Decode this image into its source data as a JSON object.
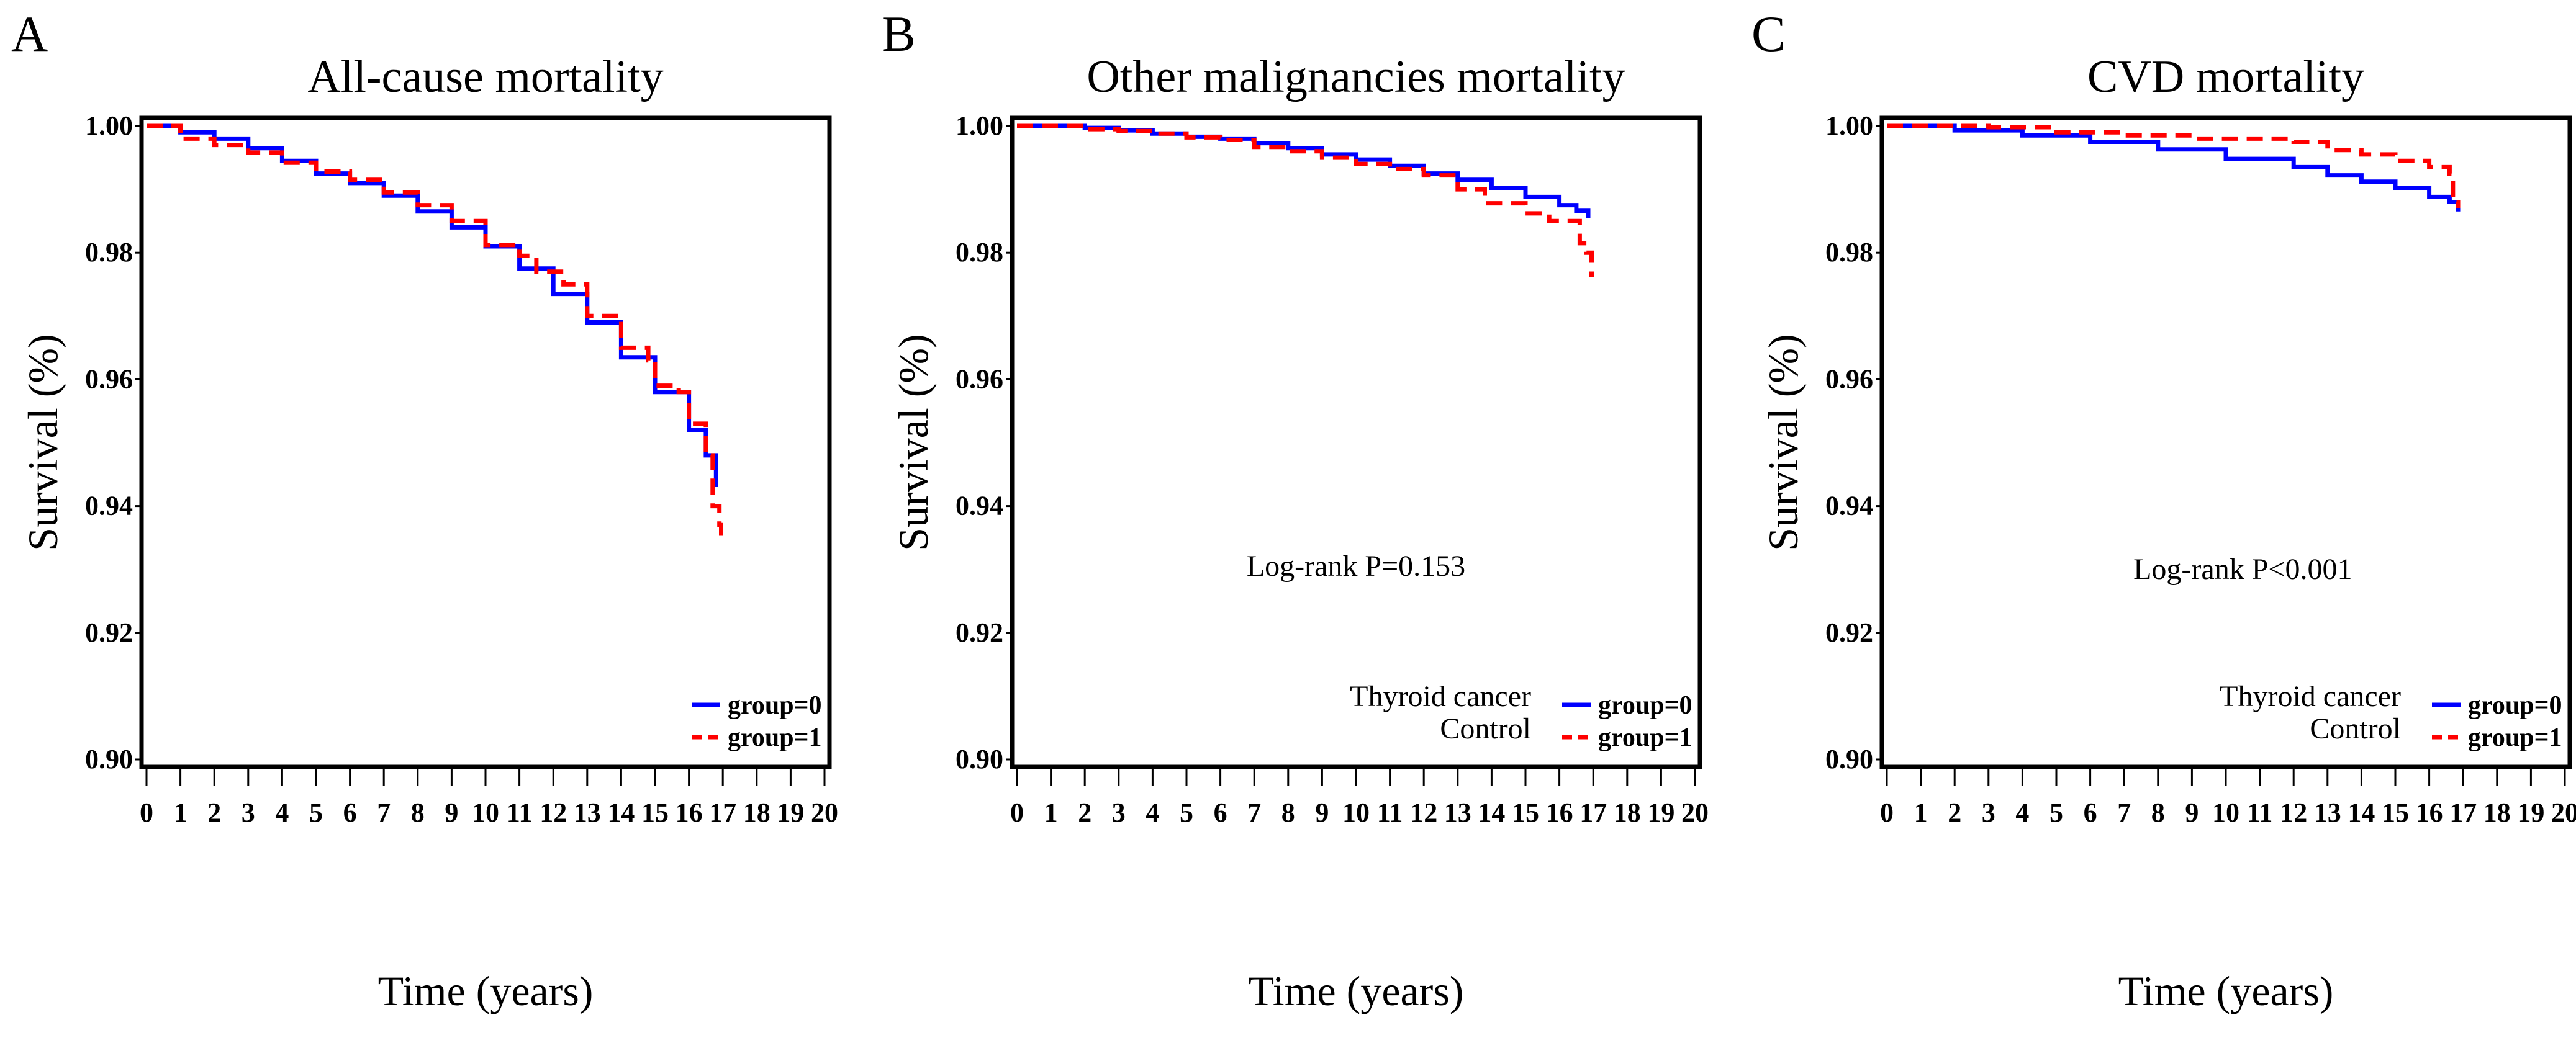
{
  "colors": {
    "group0": "#0000ff",
    "group1": "#ff0000",
    "axis": "#000000"
  },
  "chart_data": [
    {
      "type": "line",
      "panel_label": "A",
      "title": "All-cause mortality",
      "xlabel": "Time (years)",
      "ylabel": "Survival (%)",
      "xlim": [
        0,
        20
      ],
      "ylim": [
        0.9,
        1.0
      ],
      "xticks": [
        "0",
        "1",
        "2",
        "3",
        "4",
        "5",
        "6",
        "7",
        "8",
        "9",
        "10",
        "11",
        "12",
        "13",
        "14",
        "15",
        "16",
        "17",
        "18",
        "19",
        "20"
      ],
      "yticks": [
        "0.90",
        "0.92",
        "0.94",
        "0.96",
        "0.98",
        "1.00"
      ],
      "grid": false,
      "legend_position": "bottom-right",
      "legend_names": [],
      "annotation": null,
      "series": [
        {
          "name": "group=0",
          "style": "solid",
          "x": [
            0,
            1,
            2,
            3,
            4,
            5,
            6,
            7,
            8,
            9,
            10,
            11,
            12,
            13,
            14,
            15,
            16,
            16.5,
            16.8
          ],
          "y": [
            1.0,
            0.999,
            0.998,
            0.9965,
            0.9945,
            0.9925,
            0.991,
            0.989,
            0.9865,
            0.984,
            0.981,
            0.9775,
            0.9735,
            0.969,
            0.9635,
            0.958,
            0.952,
            0.948,
            0.943
          ]
        },
        {
          "name": "group=1",
          "style": "dashed",
          "x": [
            0,
            1,
            2,
            3,
            4,
            5,
            6,
            7,
            8,
            9,
            10,
            11,
            11.5,
            12.3,
            13,
            14,
            14.8,
            15,
            15.7,
            16,
            16.5,
            16.7,
            16.9,
            16.95
          ],
          "y": [
            1.0,
            0.998,
            0.997,
            0.9958,
            0.9942,
            0.9928,
            0.9915,
            0.9895,
            0.9875,
            0.985,
            0.9812,
            0.9795,
            0.977,
            0.975,
            0.97,
            0.965,
            0.963,
            0.959,
            0.958,
            0.953,
            0.948,
            0.94,
            0.937,
            0.934
          ]
        }
      ]
    },
    {
      "type": "line",
      "panel_label": "B",
      "title": "Other malignancies mortality",
      "xlabel": "Time (years)",
      "ylabel": "Survival (%)",
      "xlim": [
        0,
        20
      ],
      "ylim": [
        0.9,
        1.0
      ],
      "xticks": [
        "0",
        "1",
        "2",
        "3",
        "4",
        "5",
        "6",
        "7",
        "8",
        "9",
        "10",
        "11",
        "12",
        "13",
        "14",
        "15",
        "16",
        "17",
        "18",
        "19",
        "20"
      ],
      "yticks": [
        "0.90",
        "0.92",
        "0.94",
        "0.96",
        "0.98",
        "1.00"
      ],
      "grid": false,
      "legend_position": "bottom-right",
      "legend_names": [
        "Thyroid cancer",
        "Control"
      ],
      "annotation": {
        "text": "Log-rank P=0.153",
        "x": 10,
        "y": 0.929
      },
      "series": [
        {
          "name": "group=0",
          "style": "solid",
          "x": [
            0,
            2,
            3,
            4,
            5,
            6,
            7,
            8,
            9,
            10,
            11,
            12,
            13,
            14,
            15,
            16,
            16.5,
            16.85
          ],
          "y": [
            1.0,
            0.9997,
            0.9993,
            0.9988,
            0.9983,
            0.998,
            0.9973,
            0.9965,
            0.9955,
            0.9947,
            0.9937,
            0.9925,
            0.9915,
            0.9902,
            0.9888,
            0.9875,
            0.9866,
            0.9855
          ]
        },
        {
          "name": "group=1",
          "style": "dashed",
          "x": [
            0,
            2,
            3,
            4,
            5,
            6,
            7,
            8,
            9,
            10,
            11,
            12,
            13,
            13.8,
            14.6,
            15,
            15.7,
            16.5,
            16.6,
            16.8,
            16.95
          ],
          "y": [
            1.0,
            0.9995,
            0.9992,
            0.9988,
            0.9982,
            0.9978,
            0.9967,
            0.996,
            0.995,
            0.994,
            0.9932,
            0.9922,
            0.99,
            0.9878,
            0.9878,
            0.9862,
            0.985,
            0.985,
            0.9815,
            0.98,
            0.9762
          ]
        }
      ]
    },
    {
      "type": "line",
      "panel_label": "C",
      "title": "CVD mortality",
      "xlabel": "Time (years)",
      "ylabel": "Survival (%)",
      "xlim": [
        0,
        20
      ],
      "ylim": [
        0.9,
        1.0
      ],
      "xticks": [
        "0",
        "1",
        "2",
        "3",
        "4",
        "5",
        "6",
        "7",
        "8",
        "9",
        "10",
        "11",
        "12",
        "13",
        "14",
        "15",
        "16",
        "17",
        "18",
        "19",
        "20"
      ],
      "yticks": [
        "0.90",
        "0.92",
        "0.94",
        "0.96",
        "0.98",
        "1.00"
      ],
      "grid": false,
      "legend_position": "bottom-right",
      "legend_names": [
        "Thyroid cancer",
        "Control"
      ],
      "annotation": {
        "text": "Log-rank P<0.001",
        "x": 10.5,
        "y": 0.9285
      },
      "series": [
        {
          "name": "group=0",
          "style": "solid",
          "x": [
            0,
            2,
            4,
            6,
            8,
            10,
            12,
            13,
            14,
            15,
            16,
            16.6,
            16.85
          ],
          "y": [
            1.0,
            0.9993,
            0.9985,
            0.9975,
            0.9963,
            0.9948,
            0.9935,
            0.9922,
            0.9912,
            0.9902,
            0.9888,
            0.988,
            0.9865
          ]
        },
        {
          "name": "group=1",
          "style": "dashed",
          "x": [
            0,
            3,
            5,
            7,
            9,
            11,
            12,
            13,
            14,
            15,
            16,
            16.6,
            16.7,
            16.85
          ],
          "y": [
            1.0,
            0.9998,
            0.999,
            0.9985,
            0.998,
            0.998,
            0.9975,
            0.9962,
            0.9955,
            0.9945,
            0.9935,
            0.9925,
            0.988,
            0.987
          ]
        }
      ]
    }
  ]
}
